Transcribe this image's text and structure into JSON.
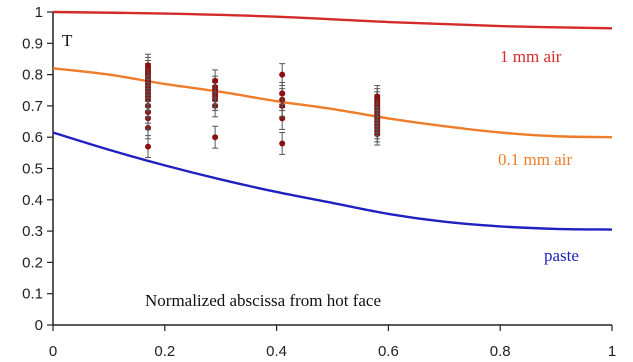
{
  "chart_data": {
    "type": "line",
    "title": "",
    "xlabel": "Normalized abscissa from hot face",
    "ylabel": "T",
    "xlim": [
      0,
      1
    ],
    "ylim": [
      0,
      1
    ],
    "x_ticks": [
      "0",
      "0.2",
      "0.4",
      "0.6",
      "0.8",
      "1"
    ],
    "y_ticks": [
      "0",
      "0.1",
      "0.2",
      "0.3",
      "0.4",
      "0.5",
      "0.6",
      "0.7",
      "0.8",
      "0.9",
      "1"
    ],
    "grid": false,
    "series": [
      {
        "name": "1 mm air",
        "color": "#d42a2a",
        "points": [
          [
            0,
            1.0
          ],
          [
            0.2,
            0.995
          ],
          [
            0.4,
            0.985
          ],
          [
            0.6,
            0.968
          ],
          [
            0.8,
            0.955
          ],
          [
            1.0,
            0.948
          ]
        ]
      },
      {
        "name": "0.1 mm air",
        "color": "#ee7c2a",
        "points": [
          [
            0,
            0.82
          ],
          [
            0.1,
            0.8
          ],
          [
            0.2,
            0.77
          ],
          [
            0.3,
            0.745
          ],
          [
            0.4,
            0.715
          ],
          [
            0.5,
            0.69
          ],
          [
            0.6,
            0.66
          ],
          [
            0.7,
            0.635
          ],
          [
            0.8,
            0.615
          ],
          [
            0.9,
            0.603
          ],
          [
            1.0,
            0.6
          ]
        ]
      },
      {
        "name": "paste",
        "color": "#2020c0",
        "points": [
          [
            0,
            0.615
          ],
          [
            0.1,
            0.56
          ],
          [
            0.2,
            0.51
          ],
          [
            0.3,
            0.465
          ],
          [
            0.4,
            0.425
          ],
          [
            0.5,
            0.39
          ],
          [
            0.6,
            0.355
          ],
          [
            0.7,
            0.33
          ],
          [
            0.8,
            0.315
          ],
          [
            0.9,
            0.307
          ],
          [
            1.0,
            0.305
          ]
        ]
      }
    ],
    "measurements": {
      "color": "#8b1010",
      "error_bar": 0.035,
      "points": [
        [
          0.17,
          0.57
        ],
        [
          0.17,
          0.63
        ],
        [
          0.17,
          0.66
        ],
        [
          0.17,
          0.68
        ],
        [
          0.17,
          0.7
        ],
        [
          0.17,
          0.72
        ],
        [
          0.17,
          0.73
        ],
        [
          0.17,
          0.74
        ],
        [
          0.17,
          0.75
        ],
        [
          0.17,
          0.76
        ],
        [
          0.17,
          0.77
        ],
        [
          0.17,
          0.78
        ],
        [
          0.17,
          0.79
        ],
        [
          0.17,
          0.8
        ],
        [
          0.17,
          0.81
        ],
        [
          0.17,
          0.82
        ],
        [
          0.17,
          0.83
        ],
        [
          0.29,
          0.6
        ],
        [
          0.29,
          0.7
        ],
        [
          0.29,
          0.72
        ],
        [
          0.29,
          0.73
        ],
        [
          0.29,
          0.74
        ],
        [
          0.29,
          0.75
        ],
        [
          0.29,
          0.76
        ],
        [
          0.29,
          0.78
        ],
        [
          0.41,
          0.58
        ],
        [
          0.41,
          0.66
        ],
        [
          0.41,
          0.7
        ],
        [
          0.41,
          0.72
        ],
        [
          0.41,
          0.74
        ],
        [
          0.41,
          0.8
        ],
        [
          0.58,
          0.61
        ],
        [
          0.58,
          0.62
        ],
        [
          0.58,
          0.63
        ],
        [
          0.58,
          0.64
        ],
        [
          0.58,
          0.65
        ],
        [
          0.58,
          0.66
        ],
        [
          0.58,
          0.67
        ],
        [
          0.58,
          0.68
        ],
        [
          0.58,
          0.69
        ],
        [
          0.58,
          0.7
        ],
        [
          0.58,
          0.71
        ],
        [
          0.58,
          0.72
        ],
        [
          0.58,
          0.73
        ]
      ]
    }
  }
}
